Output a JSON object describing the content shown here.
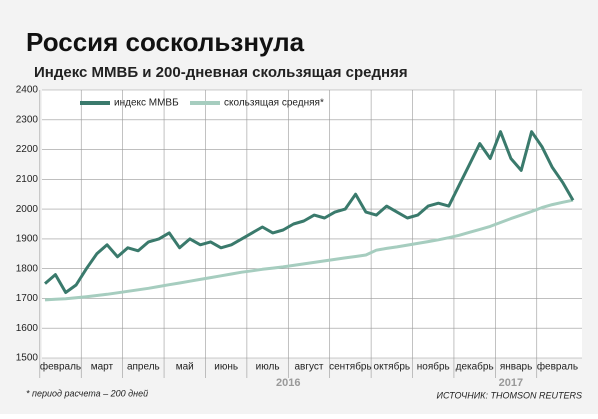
{
  "chart_data": {
    "type": "line",
    "title": "Россия соскользнула",
    "subtitle": "Индекс ММВБ и 200-дневная скользящая средняя",
    "categories": [
      null,
      "февраль",
      null,
      null,
      null,
      "март",
      null,
      null,
      null,
      "апрель",
      null,
      null,
      null,
      "май",
      null,
      null,
      null,
      "июнь",
      null,
      null,
      null,
      "июль",
      null,
      null,
      null,
      "август",
      null,
      null,
      null,
      "сентябрь",
      null,
      null,
      null,
      "октябрь",
      null,
      null,
      null,
      "ноябрь",
      null,
      null,
      null,
      "декабрь",
      null,
      null,
      null,
      "январь",
      null,
      null,
      null,
      "февраль",
      null,
      null
    ],
    "year_labels": [
      "2016",
      "2017"
    ],
    "series": [
      {
        "name": "индекс ММВБ",
        "color": "#3a7a6c",
        "values": [
          1750,
          1780,
          1720,
          1745,
          1800,
          1850,
          1880,
          1840,
          1870,
          1860,
          1890,
          1900,
          1920,
          1870,
          1900,
          1880,
          1890,
          1870,
          1880,
          1900,
          1920,
          1940,
          1920,
          1930,
          1950,
          1960,
          1980,
          1970,
          1990,
          2000,
          2050,
          1990,
          1980,
          2010,
          1990,
          1970,
          1980,
          2010,
          2020,
          2010,
          2080,
          2150,
          2220,
          2170,
          2260,
          2170,
          2130,
          2260,
          2210,
          2140,
          2090,
          2030
        ]
      },
      {
        "name": "скользящая средняя*",
        "color": "#a6cdbf",
        "values": [
          1695,
          1697,
          1699,
          1702,
          1706,
          1710,
          1714,
          1719,
          1724,
          1729,
          1734,
          1740,
          1746,
          1752,
          1758,
          1764,
          1770,
          1776,
          1782,
          1788,
          1793,
          1798,
          1802,
          1806,
          1811,
          1816,
          1821,
          1826,
          1831,
          1836,
          1841,
          1846,
          1862,
          1868,
          1873,
          1879,
          1885,
          1891,
          1897,
          1904,
          1912,
          1922,
          1932,
          1942,
          1955,
          1968,
          1980,
          1992,
          2005,
          2015,
          2023,
          2030
        ]
      }
    ],
    "ylim": [
      1500,
      2400
    ],
    "yticks": [
      1500,
      1600,
      1700,
      1800,
      1900,
      2000,
      2100,
      2200,
      2300,
      2400
    ],
    "grid": true,
    "footnote": "* период расчета – 200 дней",
    "source": "ИСТОЧНИК: THOMSON REUTERS"
  }
}
